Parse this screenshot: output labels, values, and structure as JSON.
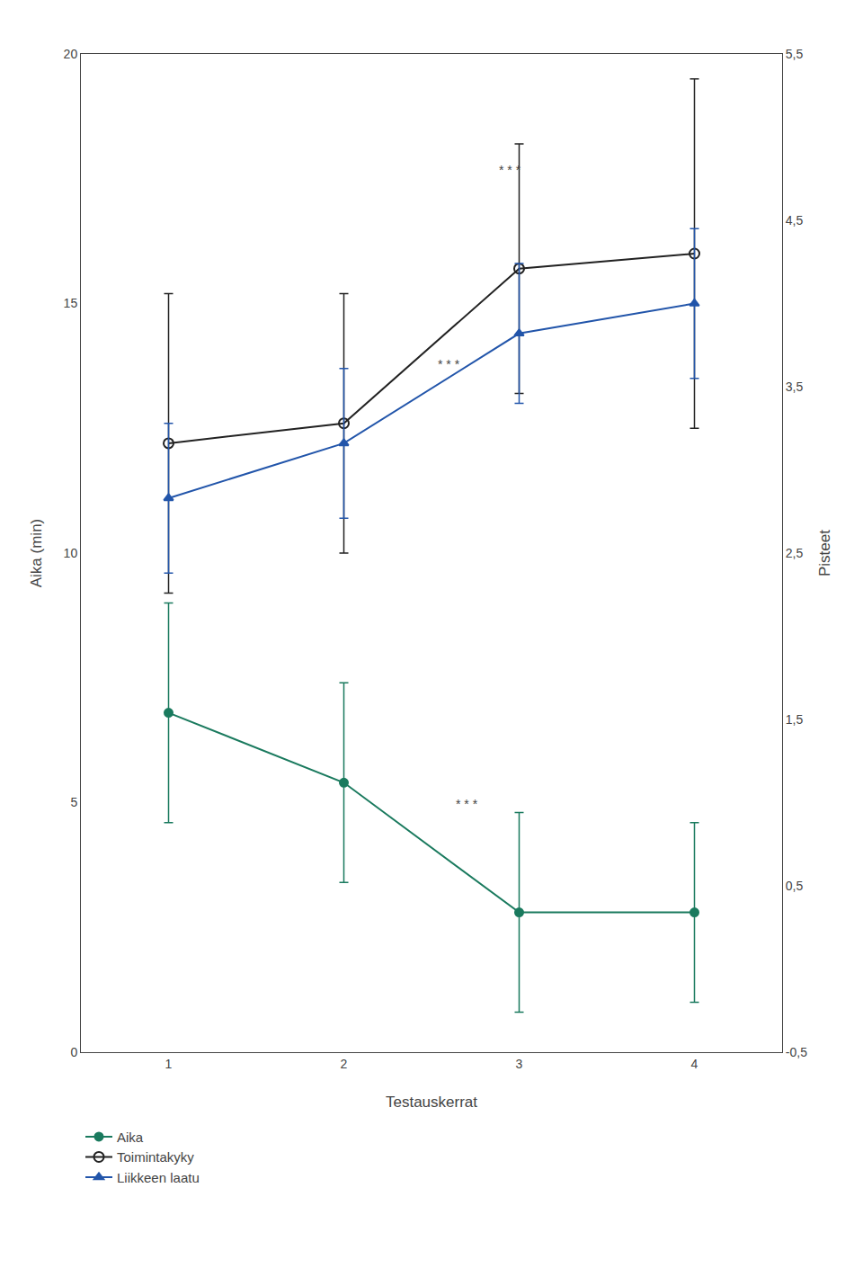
{
  "chart_data": {
    "type": "line",
    "x_label": "Testauskerrat",
    "y_label": "Aika (min)",
    "y2_label": "Pisteet",
    "x": [
      1,
      2,
      3,
      4
    ],
    "xlim": [
      0.5,
      4.5
    ],
    "xticks": [
      1,
      2,
      3,
      4
    ],
    "ylim": [
      0,
      20
    ],
    "yticks": [
      0,
      5,
      10,
      15,
      20
    ],
    "y2lim": [
      -0.5,
      5.5
    ],
    "y2ticks": [
      {
        "value": -0.5,
        "label": "-0,5"
      },
      {
        "value": 0.5,
        "label": "0,5"
      },
      {
        "value": 1.5,
        "label": "1,5"
      },
      {
        "value": 2.5,
        "label": "2,5"
      },
      {
        "value": 3.5,
        "label": "3,5"
      },
      {
        "value": 4.5,
        "label": "4,5"
      },
      {
        "value": 5.5,
        "label": "5,5"
      }
    ],
    "grid": false,
    "legend": "bottom",
    "series": [
      {
        "name": "Aika",
        "color": "#1a7a5e",
        "marker": "circle",
        "values": [
          6.8,
          5.4,
          2.8,
          2.8
        ],
        "errors": [
          2.2,
          2.0,
          2.0,
          1.8
        ]
      },
      {
        "name": "Toimintakyky",
        "color": "#222222",
        "marker": "circle-open",
        "values": [
          12.2,
          12.6,
          15.7,
          16.0
        ],
        "errors": [
          3.0,
          2.6,
          2.5,
          3.5
        ]
      },
      {
        "name": "Liikkeen laatu",
        "color": "#2255aa",
        "marker": "triangle-up",
        "values": [
          11.1,
          12.2,
          14.4,
          15.0
        ],
        "errors": [
          1.5,
          1.5,
          1.4,
          1.5
        ]
      }
    ],
    "annotations": [
      {
        "x": 2.7,
        "y": 4.8,
        "text": "* * *"
      },
      {
        "x": 2.95,
        "y": 17.5,
        "text": "* * *"
      },
      {
        "x": 2.6,
        "y": 13.6,
        "text": "* * *"
      }
    ]
  }
}
